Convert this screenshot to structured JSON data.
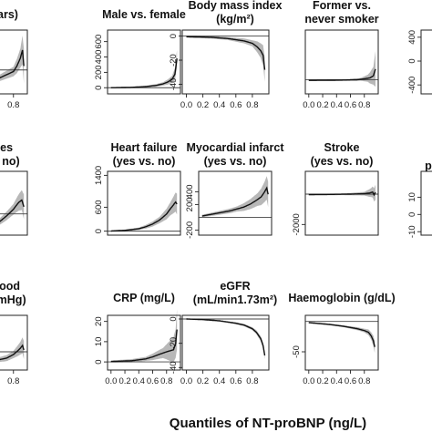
{
  "figure": {
    "xlabel": "Quantiles of NT-proBNP (ng/L)"
  },
  "chart_data": [
    {
      "id": "age",
      "type": "line",
      "title_lines": [
        "ears)"
      ],
      "ylim": [
        -200,
        600
      ],
      "yticks": [],
      "xticks": [
        "0.8"
      ],
      "ref": 100,
      "center": [
        [
          0,
          -160
        ],
        [
          0.2,
          -120
        ],
        [
          0.4,
          -60
        ],
        [
          0.6,
          0
        ],
        [
          0.7,
          40
        ],
        [
          0.8,
          80
        ],
        [
          0.85,
          150
        ],
        [
          0.9,
          250
        ],
        [
          0.93,
          350
        ],
        [
          0.95,
          150
        ]
      ],
      "halfwidth": [
        [
          0,
          20
        ],
        [
          0.5,
          30
        ],
        [
          0.8,
          60
        ],
        [
          0.9,
          120
        ],
        [
          0.95,
          220
        ]
      ]
    },
    {
      "id": "sex",
      "type": "line",
      "title_lines": [
        "Male vs. female"
      ],
      "ylim": [
        -80,
        750
      ],
      "yticks": [
        "0",
        "200",
        "400",
        "600"
      ],
      "xticks": [],
      "ref": 0,
      "center": [
        [
          0,
          0
        ],
        [
          0.3,
          5
        ],
        [
          0.5,
          15
        ],
        [
          0.65,
          30
        ],
        [
          0.75,
          50
        ],
        [
          0.82,
          75
        ],
        [
          0.88,
          110
        ],
        [
          0.92,
          175
        ],
        [
          0.95,
          380
        ]
      ],
      "halfwidth": [
        [
          0,
          6
        ],
        [
          0.5,
          10
        ],
        [
          0.75,
          22
        ],
        [
          0.88,
          45
        ],
        [
          0.95,
          110
        ]
      ]
    },
    {
      "id": "bmi",
      "type": "line",
      "title_lines": [
        "Body mass index",
        "(kg/m²)"
      ],
      "ylim": [
        -48,
        5
      ],
      "yticks": [
        "0",
        "-20",
        "-40"
      ],
      "xticks": [
        "0.0",
        "0.2",
        "0.4",
        "0.6",
        "0.8"
      ],
      "ref": 0,
      "center": [
        [
          0,
          -0.5
        ],
        [
          0.3,
          -1
        ],
        [
          0.5,
          -2
        ],
        [
          0.7,
          -4
        ],
        [
          0.8,
          -6
        ],
        [
          0.86,
          -9
        ],
        [
          0.9,
          -12
        ],
        [
          0.93,
          -16
        ],
        [
          0.95,
          -28
        ]
      ],
      "halfwidth": [
        [
          0,
          0.8
        ],
        [
          0.5,
          1.2
        ],
        [
          0.8,
          2.5
        ],
        [
          0.9,
          6
        ],
        [
          0.95,
          10
        ]
      ]
    },
    {
      "id": "smoker",
      "type": "line",
      "title_lines": [
        "Former vs.",
        "never smoker"
      ],
      "ylim": [
        -80,
        280
      ],
      "yticks": [],
      "xticks": [
        "0.0",
        "0.2",
        "0.4",
        "0.6",
        "0.8"
      ],
      "ref": 0,
      "center": [
        [
          0,
          -4
        ],
        [
          0.3,
          -3
        ],
        [
          0.5,
          -2
        ],
        [
          0.7,
          0
        ],
        [
          0.8,
          5
        ],
        [
          0.88,
          10
        ],
        [
          0.93,
          22
        ],
        [
          0.96,
          60
        ]
      ],
      "halfwidth": [
        [
          0,
          3
        ],
        [
          0.5,
          4
        ],
        [
          0.75,
          8
        ],
        [
          0.85,
          20
        ],
        [
          0.93,
          50
        ],
        [
          0.96,
          100
        ]
      ]
    },
    {
      "id": "diab",
      "type": "line",
      "title_lines": [
        "tes",
        "s. no)"
      ],
      "ylim": [
        -600,
        1200
      ],
      "yticks": [],
      "xticks": [],
      "ref": 0,
      "center": [
        [
          0,
          -500
        ],
        [
          0.3,
          -440
        ],
        [
          0.5,
          -330
        ],
        [
          0.6,
          -220
        ],
        [
          0.7,
          -60
        ],
        [
          0.8,
          130
        ],
        [
          0.85,
          260
        ],
        [
          0.88,
          330
        ],
        [
          0.92,
          390
        ],
        [
          0.95,
          200
        ]
      ],
      "halfwidth": [
        [
          0,
          40
        ],
        [
          0.5,
          60
        ],
        [
          0.8,
          150
        ],
        [
          0.92,
          280
        ],
        [
          0.95,
          350
        ]
      ]
    },
    {
      "id": "hf",
      "type": "line",
      "title_lines": [
        "Heart failure",
        "(yes vs. no)"
      ],
      "ylim": [
        -100,
        1500
      ],
      "yticks": [
        "0",
        "600",
        "1400"
      ],
      "xticks": [],
      "ref": 0,
      "center": [
        [
          0,
          5
        ],
        [
          0.2,
          20
        ],
        [
          0.4,
          60
        ],
        [
          0.5,
          110
        ],
        [
          0.6,
          180
        ],
        [
          0.7,
          280
        ],
        [
          0.8,
          430
        ],
        [
          0.85,
          550
        ],
        [
          0.9,
          660
        ],
        [
          0.93,
          730
        ],
        [
          0.95,
          680
        ]
      ],
      "halfwidth": [
        [
          0,
          10
        ],
        [
          0.4,
          30
        ],
        [
          0.7,
          80
        ],
        [
          0.85,
          160
        ],
        [
          0.95,
          260
        ]
      ]
    },
    {
      "id": "mi",
      "type": "line",
      "title_lines": [
        "Myocardial infarct",
        "(yes vs. no)"
      ],
      "ylim": [
        -280,
        720
      ],
      "yticks": [
        "-200",
        "200",
        "400"
      ],
      "xticks": [],
      "ref": 0,
      "center": [
        [
          0,
          20
        ],
        [
          0.2,
          60
        ],
        [
          0.4,
          100
        ],
        [
          0.6,
          160
        ],
        [
          0.7,
          210
        ],
        [
          0.8,
          280
        ],
        [
          0.85,
          320
        ],
        [
          0.9,
          400
        ],
        [
          0.93,
          460
        ],
        [
          0.95,
          360
        ]
      ],
      "halfwidth": [
        [
          0,
          20
        ],
        [
          0.5,
          40
        ],
        [
          0.8,
          100
        ],
        [
          0.9,
          160
        ],
        [
          0.95,
          200
        ]
      ]
    },
    {
      "id": "stroke",
      "type": "line",
      "title_lines": [
        "Stroke",
        "(yes vs. no)"
      ],
      "ylim": [
        -2700,
        1500
      ],
      "yticks": [
        "-2000"
      ],
      "xticks": [],
      "ref": 0,
      "center": [
        [
          0,
          -30
        ],
        [
          0.3,
          -20
        ],
        [
          0.6,
          0
        ],
        [
          0.8,
          30
        ],
        [
          0.88,
          80
        ],
        [
          0.92,
          140
        ],
        [
          0.94,
          -50
        ],
        [
          0.96,
          120
        ]
      ],
      "halfwidth": [
        [
          0,
          40
        ],
        [
          0.5,
          60
        ],
        [
          0.8,
          120
        ],
        [
          0.9,
          300
        ],
        [
          0.96,
          500
        ]
      ]
    },
    {
      "id": "bp",
      "type": "line",
      "title_lines": [
        "blood",
        "(mmHg)"
      ],
      "ylim": [
        -20,
        40
      ],
      "yticks": [],
      "xticks": [
        "0.8"
      ],
      "ref": 0,
      "center": [
        [
          0,
          -14
        ],
        [
          0.3,
          -12
        ],
        [
          0.5,
          -10
        ],
        [
          0.7,
          -7
        ],
        [
          0.8,
          -3
        ],
        [
          0.86,
          1
        ],
        [
          0.9,
          4
        ],
        [
          0.93,
          7
        ],
        [
          0.95,
          2
        ]
      ],
      "halfwidth": [
        [
          0,
          1.5
        ],
        [
          0.5,
          2
        ],
        [
          0.8,
          4
        ],
        [
          0.9,
          7
        ],
        [
          0.95,
          10
        ]
      ]
    },
    {
      "id": "crp",
      "type": "line",
      "title_lines": [
        "CRP (mg/L)"
      ],
      "ylim": [
        -4,
        23
      ],
      "yticks": [
        "0",
        "10",
        "20"
      ],
      "xticks": [
        "0.0",
        "0.2",
        "0.4",
        "0.6",
        "0.8"
      ],
      "ref": 0,
      "center": [
        [
          0,
          0.2
        ],
        [
          0.3,
          0.6
        ],
        [
          0.5,
          1.5
        ],
        [
          0.6,
          2.5
        ],
        [
          0.7,
          3.8
        ],
        [
          0.8,
          5
        ],
        [
          0.85,
          5.5
        ],
        [
          0.9,
          6
        ],
        [
          0.93,
          9
        ],
        [
          0.95,
          16
        ]
      ],
      "halfwidth": [
        [
          0,
          0.5
        ],
        [
          0.5,
          1
        ],
        [
          0.75,
          2.5
        ],
        [
          0.85,
          5
        ],
        [
          0.93,
          7
        ],
        [
          0.95,
          10
        ]
      ]
    },
    {
      "id": "egfr",
      "type": "line",
      "title_lines": [
        "eGFR",
        "(mL/min1.73m²)"
      ],
      "ylim": [
        -42,
        3
      ],
      "yticks": [
        "0",
        "-20",
        "-40"
      ],
      "xticks": [
        "0.0",
        "0.2",
        "0.4",
        "0.6",
        "0.8"
      ],
      "ref": 0,
      "center": [
        [
          0,
          0
        ],
        [
          0.2,
          -0.5
        ],
        [
          0.4,
          -1.5
        ],
        [
          0.6,
          -3.5
        ],
        [
          0.7,
          -5
        ],
        [
          0.8,
          -8
        ],
        [
          0.85,
          -11
        ],
        [
          0.9,
          -16
        ],
        [
          0.93,
          -22
        ],
        [
          0.95,
          -30
        ]
      ],
      "halfwidth": [
        [
          0,
          0.4
        ],
        [
          0.5,
          0.6
        ],
        [
          0.8,
          1.2
        ],
        [
          0.9,
          2
        ],
        [
          0.95,
          3
        ]
      ]
    },
    {
      "id": "hb",
      "type": "line",
      "title_lines": [
        "Haemoglobin (g/dL)"
      ],
      "ylim": [
        -80,
        10
      ],
      "yticks": [
        "-50"
      ],
      "xticks": [
        "0.0",
        "0.2",
        "0.4",
        "0.6",
        "0.8"
      ],
      "ref": 0,
      "center": [
        [
          0,
          -2
        ],
        [
          0.3,
          -5
        ],
        [
          0.5,
          -8
        ],
        [
          0.7,
          -12
        ],
        [
          0.8,
          -15
        ],
        [
          0.86,
          -18
        ],
        [
          0.9,
          -24
        ],
        [
          0.93,
          -32
        ],
        [
          0.95,
          -42
        ]
      ],
      "halfwidth": [
        [
          0,
          1
        ],
        [
          0.5,
          1.5
        ],
        [
          0.8,
          3
        ],
        [
          0.9,
          6
        ],
        [
          0.95,
          10
        ]
      ]
    },
    {
      "id": "r1",
      "type": "line",
      "title_lines": [],
      "ylim": [
        -550,
        520
      ],
      "yticks": [
        "400",
        "0",
        "-400"
      ],
      "xticks": [],
      "ref": null,
      "center": [],
      "halfwidth": []
    },
    {
      "id": "r2",
      "type": "line",
      "title_lines": [
        "p"
      ],
      "ylim": [
        -12,
        25
      ],
      "yticks": [
        "10",
        "0",
        "-10"
      ],
      "xticks": [],
      "ref": null,
      "center": [],
      "halfwidth": []
    }
  ]
}
